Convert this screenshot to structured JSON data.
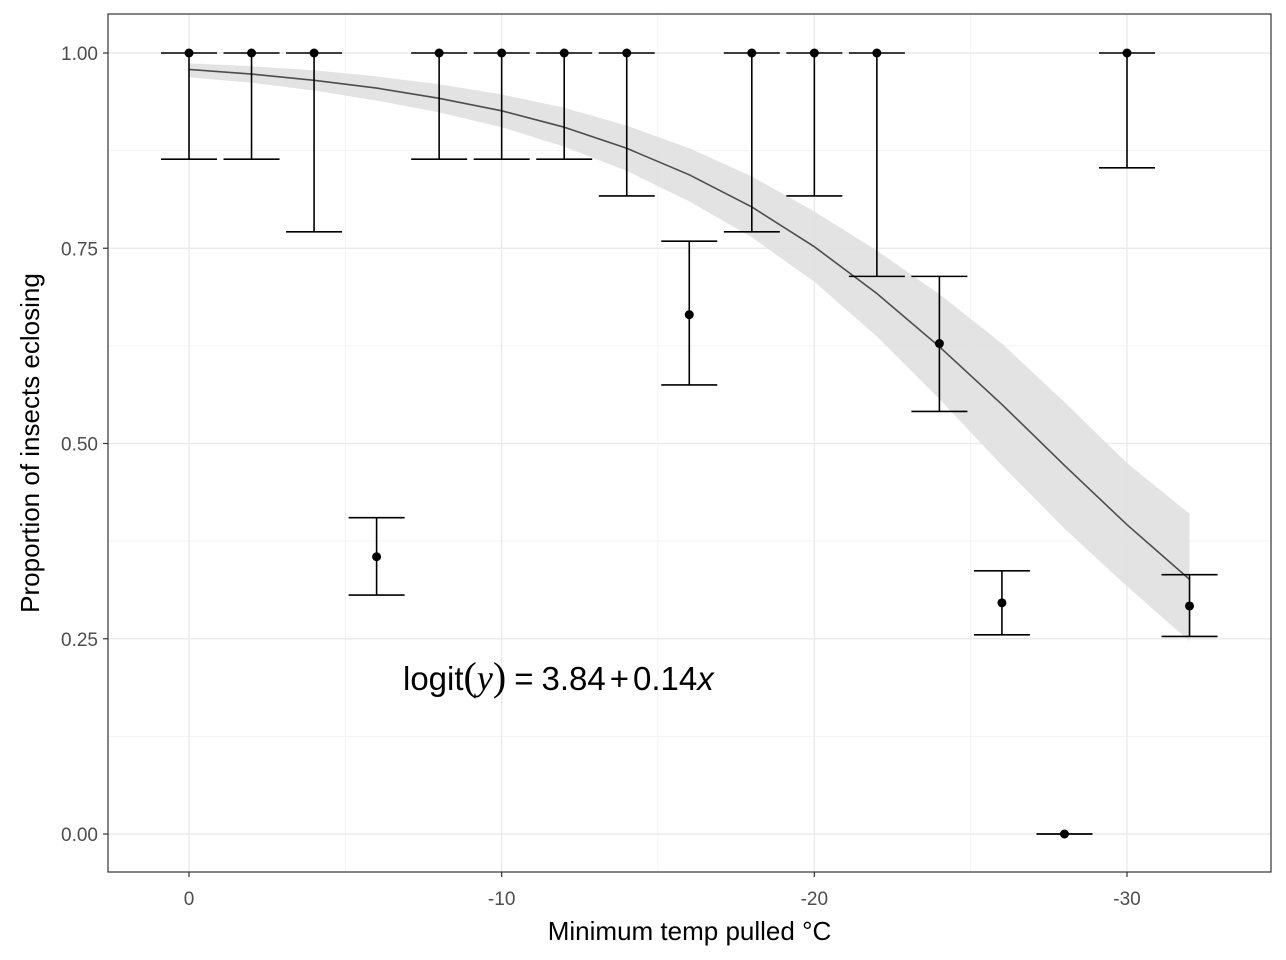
{
  "chart_data": {
    "type": "scatter",
    "title": "",
    "xlabel": "Minimum temp pulled °C",
    "ylabel": "Proportion of insects eclosing",
    "xlim": [
      0.8,
      -34.6
    ],
    "ylim": [
      -0.05,
      1.05
    ],
    "x_reversed": true,
    "x_ticks": [
      0,
      -10,
      -20,
      -30
    ],
    "x_tick_labels": [
      "0",
      "-10",
      "-20",
      "-30"
    ],
    "y_ticks": [
      0,
      0.25,
      0.5,
      0.75,
      1
    ],
    "y_tick_labels": [
      "0.00",
      "0.25",
      "0.50",
      "0.75",
      "1.00"
    ],
    "grid": true,
    "annotation": {
      "text": "logit(y) = 3.84 + 0.14x",
      "parts": {
        "lhs": "logit",
        "open": "(",
        "var": "y",
        "close": ")",
        "eq": "=",
        "a": "3.84",
        "plus": "+",
        "b": "0.14",
        "xvar": "x"
      },
      "x": -14.5,
      "y": 0.2
    },
    "points": [
      {
        "x": 0,
        "y": 1.0,
        "ymin": 0.864,
        "ymax": 1.0
      },
      {
        "x": -2,
        "y": 1.0,
        "ymin": 0.864,
        "ymax": 1.0
      },
      {
        "x": -4,
        "y": 1.0,
        "ymin": 0.771,
        "ymax": 1.0
      },
      {
        "x": -6,
        "y": 0.355,
        "ymin": 0.306,
        "ymax": 0.405
      },
      {
        "x": -8,
        "y": 1.0,
        "ymin": 0.864,
        "ymax": 1.0
      },
      {
        "x": -10,
        "y": 1.0,
        "ymin": 0.864,
        "ymax": 1.0
      },
      {
        "x": -12,
        "y": 1.0,
        "ymin": 0.864,
        "ymax": 1.0
      },
      {
        "x": -14,
        "y": 1.0,
        "ymin": 0.817,
        "ymax": 1.0
      },
      {
        "x": -16,
        "y": 0.665,
        "ymin": 0.575,
        "ymax": 0.759
      },
      {
        "x": -18,
        "y": 1.0,
        "ymin": 0.771,
        "ymax": 1.0
      },
      {
        "x": -20,
        "y": 1.0,
        "ymin": 0.817,
        "ymax": 1.0
      },
      {
        "x": -22,
        "y": 1.0,
        "ymin": 0.714,
        "ymax": 1.0
      },
      {
        "x": -24,
        "y": 0.628,
        "ymin": 0.541,
        "ymax": 0.714
      },
      {
        "x": -26,
        "y": 0.296,
        "ymin": 0.255,
        "ymax": 0.337
      },
      {
        "x": -28,
        "y": 0.0,
        "ymin": 0.0,
        "ymax": 0.0
      },
      {
        "x": -30,
        "y": 1.0,
        "ymin": 0.853,
        "ymax": 1.0
      },
      {
        "x": -32,
        "y": 0.292,
        "ymin": 0.253,
        "ymax": 0.332
      }
    ],
    "fit": {
      "x": [
        0,
        -2,
        -4,
        -6,
        -8,
        -10,
        -12,
        -14,
        -16,
        -18,
        -20,
        -22,
        -24,
        -26,
        -28,
        -30,
        -32
      ],
      "y": [
        0.979,
        0.973,
        0.965,
        0.955,
        0.942,
        0.926,
        0.905,
        0.878,
        0.844,
        0.803,
        0.752,
        0.692,
        0.624,
        0.55,
        0.472,
        0.396,
        0.326
      ],
      "lower": [
        0.969,
        0.962,
        0.952,
        0.939,
        0.924,
        0.905,
        0.88,
        0.849,
        0.81,
        0.764,
        0.707,
        0.637,
        0.557,
        0.472,
        0.391,
        0.317,
        0.247
      ],
      "upper": [
        0.987,
        0.983,
        0.978,
        0.97,
        0.96,
        0.947,
        0.93,
        0.907,
        0.878,
        0.842,
        0.797,
        0.747,
        0.691,
        0.628,
        0.553,
        0.475,
        0.41
      ]
    },
    "colors": {
      "point": "#000000",
      "errorbar": "#000000",
      "fit_line": "#4d4d4d",
      "ribbon": "#e0e0e0",
      "grid_major": "#ebebeb",
      "grid_minor": "#f3f3f3",
      "panel_border": "#333333",
      "tick_text": "#4d4d4d"
    }
  }
}
